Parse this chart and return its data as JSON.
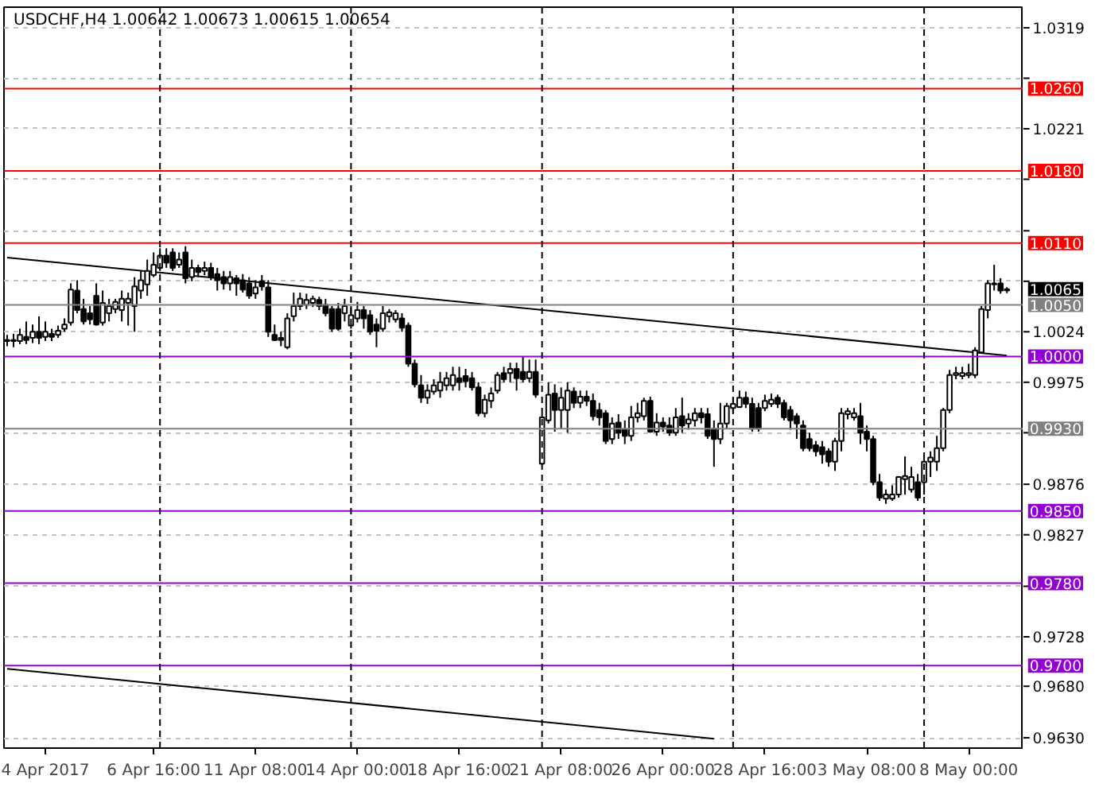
{
  "chart_data": {
    "type": "candlestick",
    "title": "USDCHF,H4  1.00642 1.00673 1.00615 1.00654",
    "categories": [
      null,
      null,
      null,
      null,
      null,
      null,
      "4 Apr 2017",
      null,
      null,
      null,
      null,
      null,
      null,
      null,
      null,
      null,
      null,
      null,
      null,
      null,
      null,
      null,
      null,
      "6 Apr 16:00",
      null,
      null,
      null,
      null,
      null,
      null,
      null,
      null,
      null,
      null,
      null,
      null,
      null,
      null,
      null,
      "11 Apr 08:00",
      null,
      null,
      null,
      null,
      null,
      null,
      null,
      null,
      null,
      null,
      null,
      null,
      null,
      null,
      null,
      "14 Apr 00:00",
      null,
      null,
      null,
      null,
      null,
      null,
      null,
      null,
      null,
      null,
      null,
      null,
      null,
      null,
      null,
      "18 Apr 16:00",
      null,
      null,
      null,
      null,
      null,
      null,
      null,
      null,
      null,
      null,
      null,
      null,
      null,
      null,
      null,
      "21 Apr 08:00",
      null,
      null,
      null,
      null,
      null,
      null,
      null,
      null,
      null,
      null,
      null,
      null,
      null,
      null,
      null,
      "26 Apr 00:00",
      null,
      null,
      null,
      null,
      null,
      null,
      null,
      null,
      null,
      null,
      null,
      null,
      null,
      null,
      null,
      "28 Apr 16:00",
      null,
      null,
      null,
      null,
      null,
      null,
      null,
      null,
      null,
      null,
      null,
      null,
      null,
      null,
      null,
      "3 May 08:00",
      null,
      null,
      null,
      null,
      null,
      null,
      null,
      null,
      null,
      null,
      null,
      null,
      null,
      null,
      null,
      "8 May 00:00",
      null,
      null,
      null,
      null,
      null,
      null
    ],
    "ohlc": [
      [
        1.0015,
        1.0021,
        1.001,
        1.0016
      ],
      [
        1.0016,
        1.0022,
        1.0009,
        1.0015
      ],
      [
        1.0015,
        1.0027,
        1.0012,
        1.0021
      ],
      [
        1.0019,
        1.0034,
        1.0012,
        1.0016
      ],
      [
        1.0018,
        1.0031,
        1.0013,
        1.0024
      ],
      [
        1.0024,
        1.0039,
        1.0012,
        1.0018
      ],
      [
        1.0019,
        1.0034,
        1.0015,
        1.0024
      ],
      [
        1.0022,
        1.0027,
        1.0015,
        1.0019
      ],
      [
        1.0021,
        1.003,
        1.0018,
        1.0025
      ],
      [
        1.0027,
        1.0037,
        1.0024,
        1.0031
      ],
      [
        1.0033,
        1.0071,
        1.003,
        1.0065
      ],
      [
        1.0064,
        1.0074,
        1.0042,
        1.0045
      ],
      [
        1.0046,
        1.0056,
        1.0031,
        1.0034
      ],
      [
        1.0042,
        1.0049,
        1.0031,
        1.0036
      ],
      [
        1.0059,
        1.0071,
        1.003,
        1.0031
      ],
      [
        1.0033,
        1.0064,
        1.003,
        1.0052
      ],
      [
        1.0042,
        1.0056,
        1.0034,
        1.0049
      ],
      [
        1.0046,
        1.0056,
        1.0042,
        1.0053
      ],
      [
        1.0045,
        1.0064,
        1.0034,
        1.0056
      ],
      [
        1.0052,
        1.0062,
        1.003,
        1.0056
      ],
      [
        1.0049,
        1.0077,
        1.0024,
        1.0068
      ],
      [
        1.0064,
        1.0083,
        1.0056,
        1.0074
      ],
      [
        1.007,
        1.0094,
        1.0059,
        1.0083
      ],
      [
        1.0079,
        1.0101,
        1.0077,
        1.0089
      ],
      [
        1.0086,
        1.0105,
        1.0083,
        1.0098
      ],
      [
        1.0098,
        1.0105,
        1.0086,
        1.0091
      ],
      [
        1.0101,
        1.0105,
        1.0083,
        1.0086
      ],
      [
        1.0089,
        1.0101,
        1.0086,
        1.0094
      ],
      [
        1.0101,
        1.0107,
        1.0071,
        1.0076
      ],
      [
        1.0077,
        1.0094,
        1.0073,
        1.0086
      ],
      [
        1.0086,
        1.0089,
        1.0077,
        1.0082
      ],
      [
        1.0083,
        1.0092,
        1.0079,
        1.0086
      ],
      [
        1.0086,
        1.0091,
        1.0074,
        1.0077
      ],
      [
        1.008,
        1.0086,
        1.0064,
        1.0074
      ],
      [
        1.0077,
        1.0083,
        1.0065,
        1.0071
      ],
      [
        1.0071,
        1.0083,
        1.0064,
        1.0077
      ],
      [
        1.0076,
        1.0079,
        1.0059,
        1.0071
      ],
      [
        1.0074,
        1.008,
        1.0062,
        1.0065
      ],
      [
        1.0071,
        1.0077,
        1.0056,
        1.0059
      ],
      [
        1.0061,
        1.0074,
        1.0056,
        1.0067
      ],
      [
        1.0073,
        1.0079,
        1.0064,
        1.0068
      ],
      [
        1.0067,
        1.0074,
        1.0019,
        1.0024
      ],
      [
        1.0021,
        1.0031,
        1.0015,
        1.0016
      ],
      [
        1.0018,
        1.0024,
        1.001,
        1.0016
      ],
      [
        1.0009,
        1.0042,
        1.0007,
        1.0037
      ],
      [
        1.0039,
        1.0062,
        1.0034,
        1.0049
      ],
      [
        1.0049,
        1.0062,
        1.0045,
        1.0056
      ],
      [
        1.005,
        1.0061,
        1.0046,
        1.0055
      ],
      [
        1.0052,
        1.0059,
        1.0048,
        1.0056
      ],
      [
        1.0055,
        1.0058,
        1.0045,
        1.0049
      ],
      [
        1.005,
        1.0056,
        1.0039,
        1.0042
      ],
      [
        1.0046,
        1.0049,
        1.0024,
        1.0027
      ],
      [
        1.0046,
        1.0052,
        1.0025,
        1.0027
      ],
      [
        1.0042,
        1.0056,
        1.0034,
        1.0049
      ],
      [
        1.003,
        1.0049,
        1.0027,
        1.004
      ],
      [
        1.0037,
        1.0053,
        1.0033,
        1.0045
      ],
      [
        1.0045,
        1.0049,
        1.0027,
        1.0037
      ],
      [
        1.004,
        1.0045,
        1.0021,
        1.0024
      ],
      [
        1.0031,
        1.0037,
        1.0009,
        1.0025
      ],
      [
        1.0027,
        1.0049,
        1.0024,
        1.0042
      ],
      [
        1.0039,
        1.0046,
        1.0033,
        1.0043
      ],
      [
        1.0036,
        1.0045,
        1.0033,
        1.0042
      ],
      [
        1.0037,
        1.0042,
        1.0024,
        1.0028
      ],
      [
        1.003,
        1.0033,
        0.999,
        0.9993
      ],
      [
        0.9993,
        0.9997,
        0.997,
        0.9973
      ],
      [
        0.9972,
        0.9982,
        0.9955,
        0.996
      ],
      [
        0.996,
        0.9973,
        0.9954,
        0.9967
      ],
      [
        0.9966,
        0.9978,
        0.9963,
        0.9972
      ],
      [
        0.9967,
        0.9985,
        0.996,
        0.9975
      ],
      [
        0.9972,
        0.9985,
        0.9967,
        0.9979
      ],
      [
        0.9972,
        0.999,
        0.9967,
        0.9982
      ],
      [
        0.9979,
        0.999,
        0.9967,
        0.9975
      ],
      [
        0.9981,
        0.9988,
        0.997,
        0.9976
      ],
      [
        0.9979,
        0.9985,
        0.9967,
        0.997
      ],
      [
        0.997,
        0.9975,
        0.9942,
        0.9945
      ],
      [
        0.9945,
        0.9963,
        0.9941,
        0.9958
      ],
      [
        0.9957,
        0.997,
        0.995,
        0.9964
      ],
      [
        0.9967,
        0.9985,
        0.9964,
        0.9982
      ],
      [
        0.9984,
        0.999,
        0.9975,
        0.9978
      ],
      [
        0.9984,
        0.9994,
        0.9975,
        0.9988
      ],
      [
        0.9988,
        0.9994,
        0.9967,
        0.9979
      ],
      [
        0.9985,
        1.0,
        0.9975,
        0.9978
      ],
      [
        0.9979,
        0.9997,
        0.9975,
        0.9985
      ],
      [
        0.9985,
        0.9997,
        0.996,
        0.9963
      ],
      [
        0.9896,
        0.9944,
        0.9895,
        0.9941
      ],
      [
        0.9938,
        0.9975,
        0.9935,
        0.9963
      ],
      [
        0.9964,
        0.9973,
        0.9927,
        0.9948
      ],
      [
        0.9948,
        0.997,
        0.993,
        0.996
      ],
      [
        0.9948,
        0.9975,
        0.9926,
        0.9967
      ],
      [
        0.9966,
        0.997,
        0.995,
        0.9955
      ],
      [
        0.9955,
        0.9967,
        0.995,
        0.9961
      ],
      [
        0.9961,
        0.9967,
        0.9952,
        0.9957
      ],
      [
        0.9957,
        0.9964,
        0.9938,
        0.9942
      ],
      [
        0.9948,
        0.9955,
        0.9933,
        0.9941
      ],
      [
        0.9945,
        0.9948,
        0.9915,
        0.9918
      ],
      [
        0.992,
        0.9941,
        0.9915,
        0.9935
      ],
      [
        0.9936,
        0.9944,
        0.992,
        0.9926
      ],
      [
        0.9929,
        0.9938,
        0.9915,
        0.9923
      ],
      [
        0.9923,
        0.9952,
        0.9918,
        0.9941
      ],
      [
        0.9941,
        0.9955,
        0.9936,
        0.9945
      ],
      [
        0.9942,
        0.996,
        0.9938,
        0.9957
      ],
      [
        0.9957,
        0.9961,
        0.9926,
        0.9927
      ],
      [
        0.9927,
        0.9945,
        0.9923,
        0.9936
      ],
      [
        0.9936,
        0.9941,
        0.9927,
        0.9932
      ],
      [
        0.9933,
        0.9941,
        0.9923,
        0.9926
      ],
      [
        0.9926,
        0.995,
        0.9923,
        0.9941
      ],
      [
        0.9942,
        0.996,
        0.9926,
        0.9933
      ],
      [
        0.9935,
        0.9945,
        0.9929,
        0.9939
      ],
      [
        0.9938,
        0.995,
        0.9932,
        0.9945
      ],
      [
        0.9945,
        0.995,
        0.9935,
        0.9941
      ],
      [
        0.9944,
        0.995,
        0.992,
        0.9923
      ],
      [
        0.993,
        0.9938,
        0.9893,
        0.992
      ],
      [
        0.992,
        0.9955,
        0.9915,
        0.9935
      ],
      [
        0.9935,
        0.9955,
        0.993,
        0.9952
      ],
      [
        0.995,
        0.996,
        0.9945,
        0.9954
      ],
      [
        0.9951,
        0.9967,
        0.995,
        0.996
      ],
      [
        0.996,
        0.9966,
        0.995,
        0.9954
      ],
      [
        0.9954,
        0.996,
        0.9927,
        0.993
      ],
      [
        0.995,
        0.9955,
        0.9927,
        0.993
      ],
      [
        0.995,
        0.9963,
        0.9947,
        0.9957
      ],
      [
        0.9954,
        0.9964,
        0.9951,
        0.9958
      ],
      [
        0.996,
        0.9963,
        0.995,
        0.9954
      ],
      [
        0.9955,
        0.9958,
        0.9938,
        0.9941
      ],
      [
        0.9948,
        0.9952,
        0.9929,
        0.9938
      ],
      [
        0.9942,
        0.9945,
        0.992,
        0.9935
      ],
      [
        0.9933,
        0.9938,
        0.9908,
        0.9911
      ],
      [
        0.992,
        0.9926,
        0.9908,
        0.9911
      ],
      [
        0.9914,
        0.9918,
        0.9903,
        0.9908
      ],
      [
        0.9912,
        0.9918,
        0.9896,
        0.9905
      ],
      [
        0.9908,
        0.9911,
        0.9893,
        0.9898
      ],
      [
        0.9898,
        0.9921,
        0.9889,
        0.9918
      ],
      [
        0.9918,
        0.995,
        0.9908,
        0.9945
      ],
      [
        0.9944,
        0.995,
        0.9939,
        0.9947
      ],
      [
        0.9941,
        0.995,
        0.9938,
        0.9945
      ],
      [
        0.9942,
        0.9955,
        0.9915,
        0.9926
      ],
      [
        0.9927,
        0.9933,
        0.9908,
        0.992
      ],
      [
        0.992,
        0.9923,
        0.9875,
        0.9878
      ],
      [
        0.9878,
        0.9886,
        0.986,
        0.9863
      ],
      [
        0.9862,
        0.9871,
        0.9857,
        0.9866
      ],
      [
        0.9862,
        0.9875,
        0.986,
        0.9866
      ],
      [
        0.9866,
        0.9884,
        0.9863,
        0.9883
      ],
      [
        0.9881,
        0.9903,
        0.9866,
        0.9884
      ],
      [
        0.9871,
        0.9893,
        0.9868,
        0.9883
      ],
      [
        0.9878,
        0.9886,
        0.986,
        0.9863
      ],
      [
        0.9878,
        0.9901,
        0.9866,
        0.9898
      ],
      [
        0.9898,
        0.9908,
        0.9883,
        0.9902
      ],
      [
        0.9898,
        0.9923,
        0.9889,
        0.9911
      ],
      [
        0.9911,
        0.995,
        0.9908,
        0.9948
      ],
      [
        0.9948,
        0.9987,
        0.9945,
        0.9982
      ],
      [
        0.9982,
        0.999,
        0.9978,
        0.9984
      ],
      [
        0.9981,
        0.999,
        0.9978,
        0.9984
      ],
      [
        0.9982,
        0.9993,
        0.9979,
        0.9984
      ],
      [
        0.9982,
        1.0009,
        0.9979,
        1.0006
      ],
      [
        1.0004,
        1.0049,
        1.0003,
        1.0046
      ],
      [
        1.0045,
        1.0074,
        1.0037,
        1.0071
      ],
      [
        1.007,
        1.0089,
        1.0064,
        1.0071
      ],
      [
        1.0071,
        1.0076,
        1.0061,
        1.0064
      ],
      [
        1.00642,
        1.00673,
        1.00615,
        1.00654
      ]
    ],
    "series": [
      {
        "type": "line",
        "color": "#000000",
        "values": [
          1.0096,
          null,
          null,
          null,
          null,
          null,
          null,
          null,
          null,
          null,
          null,
          null,
          null,
          null,
          null,
          null,
          null,
          null,
          null,
          null,
          null,
          null,
          null,
          null,
          null,
          null,
          null,
          null,
          null,
          null,
          null,
          null,
          null,
          null,
          null,
          null,
          null,
          null,
          null,
          null,
          null,
          null,
          null,
          null,
          null,
          null,
          null,
          null,
          null,
          null,
          null,
          null,
          null,
          null,
          null,
          null,
          null,
          null,
          null,
          null,
          null,
          null,
          null,
          null,
          null,
          null,
          null,
          null,
          null,
          null,
          null,
          null,
          null,
          null,
          null,
          null,
          null,
          null,
          null,
          null,
          null,
          null,
          null,
          null,
          null,
          null,
          null,
          null,
          null,
          null,
          null,
          null,
          null,
          null,
          null,
          null,
          null,
          null,
          null,
          null,
          null,
          null,
          null,
          null,
          null,
          null,
          null,
          null,
          null,
          null,
          null,
          null,
          null,
          null,
          null,
          null,
          null,
          null,
          null,
          null,
          null,
          null,
          null,
          null,
          null,
          null,
          null,
          null,
          null,
          null,
          null,
          null,
          null,
          null,
          null,
          null,
          null,
          null,
          null,
          null,
          null,
          null,
          null,
          null,
          null,
          null,
          null,
          null,
          null,
          null,
          null,
          null,
          null,
          null,
          null,
          null,
          null,
          1.0001
        ]
      },
      {
        "type": "line",
        "color": "#000000",
        "values": [
          0.9697,
          null,
          null,
          null,
          null,
          null,
          null,
          null,
          null,
          null,
          null,
          null,
          null,
          null,
          null,
          null,
          null,
          null,
          null,
          null,
          null,
          null,
          null,
          null,
          null,
          null,
          null,
          null,
          null,
          null,
          null,
          null,
          null,
          null,
          null,
          null,
          null,
          null,
          null,
          null,
          null,
          null,
          null,
          null,
          null,
          null,
          null,
          null,
          null,
          null,
          null,
          null,
          null,
          null,
          null,
          null,
          null,
          null,
          null,
          null,
          null,
          null,
          null,
          null,
          null,
          null,
          null,
          null,
          null,
          null,
          null,
          null,
          null,
          null,
          null,
          null,
          null,
          null,
          null,
          null,
          null,
          null,
          null,
          null,
          null,
          null,
          null,
          null,
          null,
          null,
          null,
          null,
          null,
          null,
          null,
          null,
          null,
          null,
          null,
          null,
          null,
          null,
          null,
          null,
          null,
          null,
          null,
          null,
          null,
          null,
          null,
          0.9629,
          null,
          null,
          null,
          null,
          null,
          null,
          null,
          null,
          null,
          null,
          null,
          null,
          null,
          null,
          null,
          null,
          null,
          null,
          null,
          null,
          null,
          null,
          null,
          null,
          null,
          null,
          null,
          null,
          null,
          null,
          null,
          null,
          null,
          null,
          null,
          null,
          null,
          null,
          null,
          null,
          null,
          null,
          null,
          null,
          null,
          null
        ]
      }
    ],
    "ylim": [
      0.962,
      1.0339
    ],
    "yticks": [
      1.0319,
      {
        "value": 1.027,
        "label": null
      },
      1.0221,
      {
        "value": 1.0172,
        "label": null
      },
      {
        "value": 1.0122,
        "label": null
      },
      {
        "value": 1.0073,
        "label": null
      },
      1.0024,
      0.9975,
      {
        "value": 0.9926,
        "label": null
      },
      0.9876,
      0.9827,
      {
        "value": 0.9777,
        "label": null
      },
      0.9728,
      {
        "value": 0.968,
        "label": "0.9680"
      },
      {
        "value": 0.963,
        "label": "0.9630"
      }
    ],
    "grid": "y",
    "ref_lines": [
      {
        "axis": "y",
        "value": 1.026,
        "label": "1.0260",
        "color": "#ff0000"
      },
      {
        "axis": "y",
        "value": 1.018,
        "label": "1.0180",
        "color": "#ff0000"
      },
      {
        "axis": "y",
        "value": 1.011,
        "label": "1.0110",
        "color": "#ff0000"
      },
      {
        "axis": "y",
        "value": 1.005,
        "label": "1.0050",
        "color": "#808080"
      },
      {
        "axis": "y",
        "value": 1.0,
        "label": "1.0000",
        "color": "#9400d3"
      },
      {
        "axis": "y",
        "value": 0.993,
        "label": "0.9930",
        "color": "#808080"
      },
      {
        "axis": "y",
        "value": 0.985,
        "label": "0.9850",
        "color": "#9400d3"
      },
      {
        "axis": "y",
        "value": 0.978,
        "label": "0.9780",
        "color": "#9400d3"
      },
      {
        "axis": "y",
        "value": 0.97,
        "label": "0.9700",
        "color": "#9400d3"
      }
    ],
    "annotations": [
      "1.0065"
    ]
  }
}
